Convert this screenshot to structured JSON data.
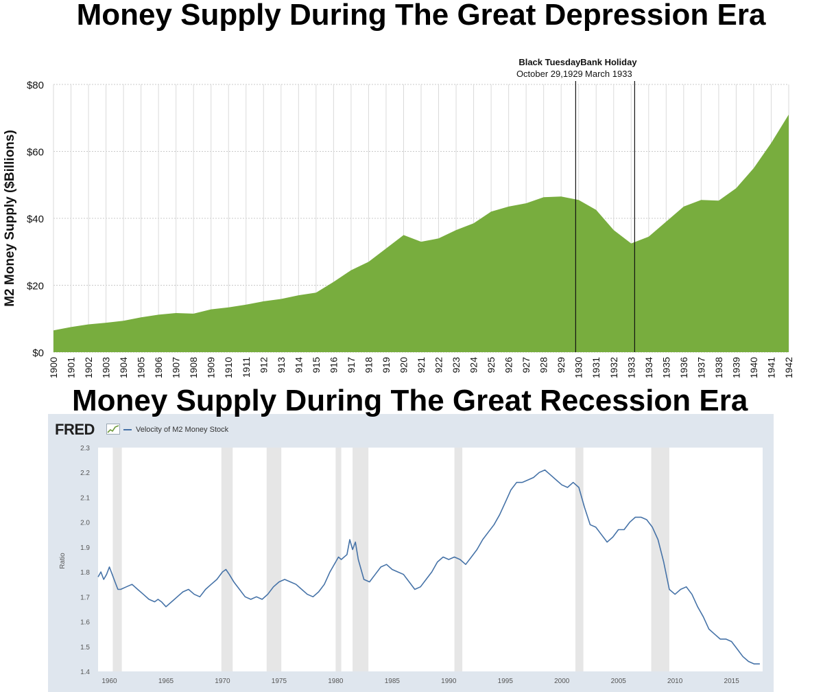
{
  "page": {
    "title_top": "Money Supply During The Great Depression Era",
    "title_bottom": "Money Supply During The Great Recession Era"
  },
  "fred": {
    "logo": "FRED",
    "legend": "Velocity of M2 Money Stock",
    "icon": "chart-icon"
  },
  "colors": {
    "area": "#78ad3e",
    "fred_line": "#4572a7",
    "fred_panel": "#dfe6ee",
    "recession_band": "#e6e6e6"
  },
  "chart_data": [
    {
      "type": "area",
      "title": "Money Supply During The Great Depression Era",
      "xlabel": "",
      "ylabel": "M2 Money Supply ($Billions)",
      "ylim": [
        0,
        80
      ],
      "yticks": [
        "$0",
        "$20",
        "$40",
        "$60",
        "$80"
      ],
      "ytick_values": [
        0,
        20,
        40,
        60,
        80
      ],
      "categories": [
        "1900",
        "1901",
        "1902",
        "1903",
        "1904",
        "1905",
        "1906",
        "1907",
        "1908",
        "1909",
        "1910",
        "1911",
        "912",
        "913",
        "914",
        "915",
        "916",
        "917",
        "918",
        "919",
        "920",
        "921",
        "922",
        "923",
        "924",
        "925",
        "926",
        "927",
        "928",
        "929",
        "1930",
        "1931",
        "1932",
        "1933",
        "1934",
        "1935",
        "1936",
        "1937",
        "1938",
        "1939",
        "1940",
        "1941",
        "1942"
      ],
      "values": [
        6.5,
        7.5,
        8.3,
        8.8,
        9.4,
        10.4,
        11.2,
        11.7,
        11.5,
        12.8,
        13.4,
        14.2,
        15.2,
        15.9,
        17.0,
        17.8,
        21.0,
        24.5,
        27.0,
        31.0,
        35.0,
        33.0,
        34.0,
        36.5,
        38.5,
        42.0,
        43.5,
        44.5,
        46.3,
        46.5,
        45.5,
        42.5,
        36.5,
        32.5,
        34.5,
        39.0,
        43.5,
        45.5,
        45.3,
        49.0,
        55.0,
        62.5,
        71.0
      ],
      "grid": true,
      "annotations": [
        {
          "title": "Black Tuesday",
          "subtitle": "October 29,1929",
          "x": 1929.83
        },
        {
          "title": "Bank Holiday",
          "subtitle": "March 1933",
          "x": 1933.2
        }
      ]
    },
    {
      "type": "line",
      "title": "Velocity of M2 Money Stock",
      "xlabel": "",
      "ylabel": "Ratio",
      "xlim": [
        1959,
        2017.75
      ],
      "ylim": [
        1.4,
        2.3
      ],
      "xticks": [
        "1960",
        "1965",
        "1970",
        "1975",
        "1980",
        "1985",
        "1990",
        "1995",
        "2000",
        "2005",
        "2010",
        "2015"
      ],
      "xtick_values": [
        1960,
        1965,
        1970,
        1975,
        1980,
        1985,
        1990,
        1995,
        2000,
        2005,
        2010,
        2015
      ],
      "yticks": [
        "1.4",
        "1.5",
        "1.6",
        "1.7",
        "1.8",
        "1.9",
        "2.0",
        "2.1",
        "2.2",
        "2.3"
      ],
      "ytick_values": [
        1.4,
        1.5,
        1.6,
        1.7,
        1.8,
        1.9,
        2.0,
        2.1,
        2.2,
        2.3
      ],
      "recessions": [
        [
          1960.3,
          1961.1
        ],
        [
          1969.9,
          1970.9
        ],
        [
          1973.9,
          1975.2
        ],
        [
          1980.0,
          1980.5
        ],
        [
          1981.5,
          1982.9
        ],
        [
          1990.5,
          1991.2
        ],
        [
          2001.2,
          2001.9
        ],
        [
          2007.9,
          2009.5
        ]
      ],
      "series": [
        {
          "name": "Velocity of M2 Money Stock",
          "x": [
            1959.0,
            1959.25,
            1959.5,
            1959.75,
            1960.0,
            1960.25,
            1960.5,
            1960.75,
            1961.0,
            1961.5,
            1962.0,
            1962.5,
            1963.0,
            1963.5,
            1964.0,
            1964.3,
            1964.6,
            1965.0,
            1965.5,
            1966.0,
            1966.5,
            1967.0,
            1967.5,
            1968.0,
            1968.5,
            1969.0,
            1969.5,
            1970.0,
            1970.3,
            1970.6,
            1971.0,
            1971.5,
            1972.0,
            1972.5,
            1973.0,
            1973.5,
            1974.0,
            1974.5,
            1975.0,
            1975.5,
            1976.0,
            1976.5,
            1977.0,
            1977.5,
            1978.0,
            1978.5,
            1979.0,
            1979.5,
            1980.0,
            1980.25,
            1980.5,
            1981.0,
            1981.25,
            1981.5,
            1981.75,
            1982.0,
            1982.5,
            1983.0,
            1983.5,
            1984.0,
            1984.5,
            1985.0,
            1985.5,
            1986.0,
            1986.5,
            1987.0,
            1987.5,
            1988.0,
            1988.5,
            1989.0,
            1989.5,
            1990.0,
            1990.5,
            1991.0,
            1991.5,
            1992.0,
            1992.5,
            1993.0,
            1993.5,
            1994.0,
            1994.5,
            1995.0,
            1995.5,
            1996.0,
            1996.5,
            1997.0,
            1997.5,
            1998.0,
            1998.5,
            1999.0,
            1999.5,
            2000.0,
            2000.5,
            2001.0,
            2001.5,
            2002.0,
            2002.5,
            2003.0,
            2003.5,
            2004.0,
            2004.5,
            2005.0,
            2005.5,
            2006.0,
            2006.5,
            2007.0,
            2007.5,
            2008.0,
            2008.5,
            2009.0,
            2009.5,
            2010.0,
            2010.5,
            2011.0,
            2011.5,
            2012.0,
            2012.5,
            2013.0,
            2013.5,
            2014.0,
            2014.5,
            2015.0,
            2015.5,
            2016.0,
            2016.5,
            2017.0,
            2017.5
          ],
          "y": [
            1.78,
            1.8,
            1.77,
            1.79,
            1.82,
            1.79,
            1.76,
            1.73,
            1.73,
            1.74,
            1.75,
            1.73,
            1.71,
            1.69,
            1.68,
            1.69,
            1.68,
            1.66,
            1.68,
            1.7,
            1.72,
            1.73,
            1.71,
            1.7,
            1.73,
            1.75,
            1.77,
            1.8,
            1.81,
            1.79,
            1.76,
            1.73,
            1.7,
            1.69,
            1.7,
            1.69,
            1.71,
            1.74,
            1.76,
            1.77,
            1.76,
            1.75,
            1.73,
            1.71,
            1.7,
            1.72,
            1.75,
            1.8,
            1.84,
            1.86,
            1.85,
            1.87,
            1.93,
            1.89,
            1.92,
            1.85,
            1.77,
            1.76,
            1.79,
            1.82,
            1.83,
            1.81,
            1.8,
            1.79,
            1.76,
            1.73,
            1.74,
            1.77,
            1.8,
            1.84,
            1.86,
            1.85,
            1.86,
            1.85,
            1.83,
            1.86,
            1.89,
            1.93,
            1.96,
            1.99,
            2.03,
            2.08,
            2.13,
            2.16,
            2.16,
            2.17,
            2.18,
            2.2,
            2.21,
            2.19,
            2.17,
            2.15,
            2.14,
            2.16,
            2.14,
            2.06,
            1.99,
            1.98,
            1.95,
            1.92,
            1.94,
            1.97,
            1.97,
            2.0,
            2.02,
            2.02,
            2.01,
            1.98,
            1.93,
            1.84,
            1.73,
            1.71,
            1.73,
            1.74,
            1.71,
            1.66,
            1.62,
            1.57,
            1.55,
            1.53,
            1.53,
            1.52,
            1.49,
            1.46,
            1.44,
            1.43,
            1.43
          ]
        }
      ]
    }
  ]
}
